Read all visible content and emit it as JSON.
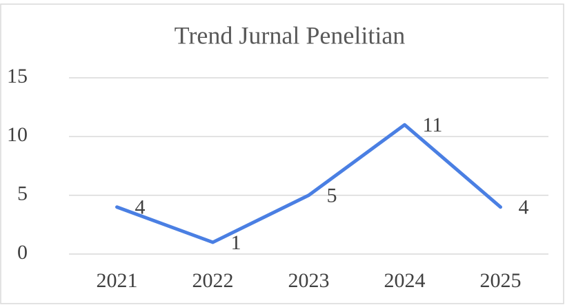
{
  "chart_data": {
    "type": "line",
    "title": "Trend Jurnal Penelitian",
    "categories": [
      "2021",
      "2022",
      "2023",
      "2024",
      "2025"
    ],
    "values": [
      4,
      1,
      5,
      11,
      4
    ],
    "color": "#4a7fe3",
    "ylim": [
      0,
      15
    ],
    "yticks": [
      0,
      5,
      10,
      15
    ],
    "grid": true
  }
}
